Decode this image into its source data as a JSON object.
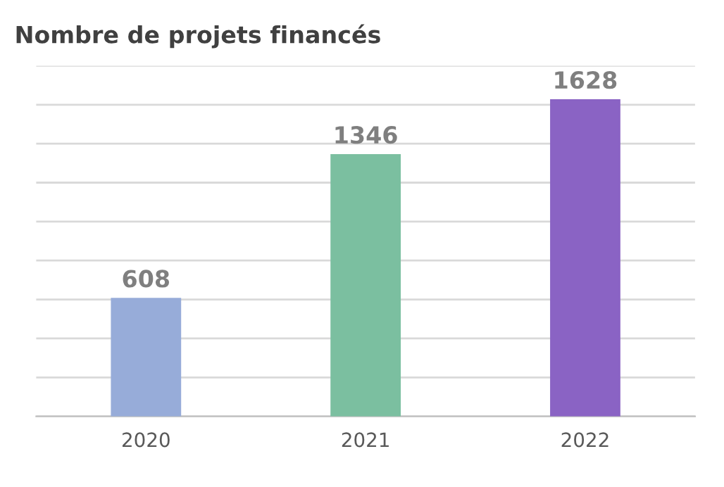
{
  "chart_data": {
    "type": "bar",
    "title": "Nombre de projets financés",
    "categories": [
      "2020",
      "2021",
      "2022"
    ],
    "values": [
      608,
      1346,
      1628
    ],
    "colors": [
      "#97acd9",
      "#7bbfa0",
      "#8a63c4"
    ],
    "ylim": [
      0,
      1800
    ],
    "yticks": [
      {
        "value": 0,
        "label": null
      },
      {
        "value": 200,
        "label": null
      },
      {
        "value": 400,
        "label": null
      },
      {
        "value": 600,
        "label": null
      },
      {
        "value": 800,
        "label": null
      },
      {
        "value": 1000,
        "label": null
      },
      {
        "value": 1200,
        "label": null
      },
      {
        "value": 1400,
        "label": null
      },
      {
        "value": 1600,
        "label": null
      },
      {
        "value": 1800,
        "label": null
      }
    ],
    "tick_labels": "x",
    "grid": "y",
    "data_labels": true
  }
}
